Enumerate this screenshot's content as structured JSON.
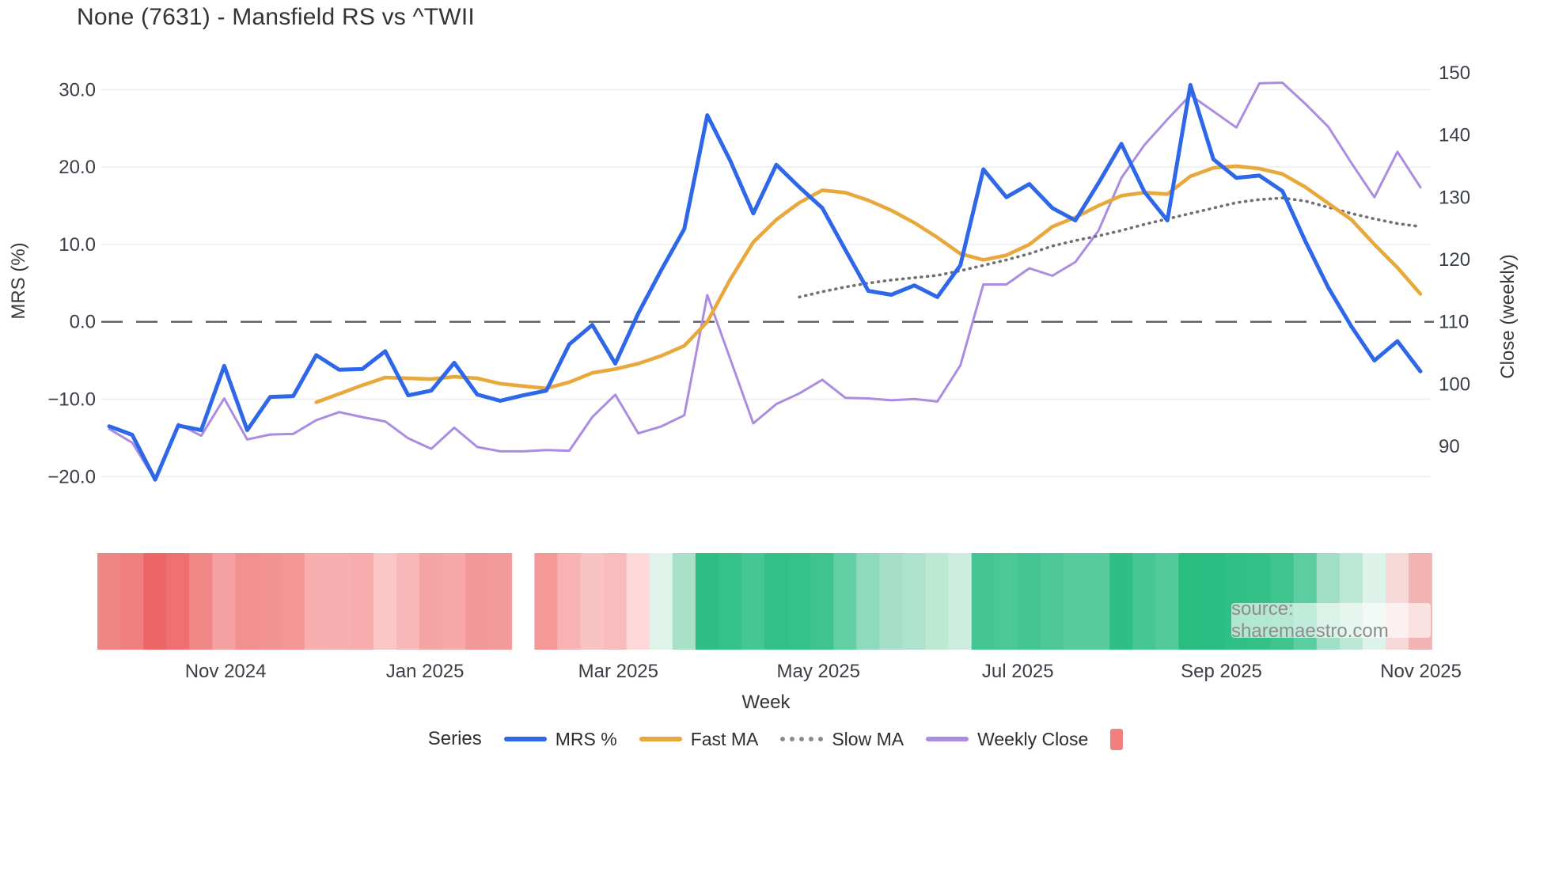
{
  "page": {
    "title": "None (7631) - Mansfield RS vs ^TWII"
  },
  "axes": {
    "left_title": "MRS (%)",
    "right_title": "Close (weekly)",
    "x_title": "Week"
  },
  "legend": {
    "title": "Series",
    "items": [
      {
        "label": "MRS %",
        "swatch": "line",
        "color": "#2e68e8"
      },
      {
        "label": "Fast MA",
        "swatch": "line",
        "color": "#e9a83c"
      },
      {
        "label": "Slow MA",
        "swatch": "dotted",
        "color": "#8a8a8a"
      },
      {
        "label": "Weekly Close",
        "swatch": "line",
        "color": "#ab8ce0"
      },
      {
        "label": "",
        "swatch": "square",
        "color": "#f28080"
      }
    ]
  },
  "source": {
    "text": "source: sharemaestro.com"
  },
  "chart_data": {
    "type": "line",
    "title": "None (7631) - Mansfield RS vs ^TWII",
    "xlabel": "Week",
    "ylabel_left": "MRS (%)",
    "ylabel_right": "Close (weekly)",
    "grid": "horizontal-left-ticks-only",
    "legend_position": "bottom-center",
    "n_points": 58,
    "x_unit": "weekly, ~Sep 2024 through early Nov 2025",
    "x_ticks": [
      {
        "label": "Nov 2024",
        "week": 5.06
      },
      {
        "label": "Jan 2025",
        "week": 13.73
      },
      {
        "label": "Mar 2025",
        "week": 22.13
      },
      {
        "label": "May 2025",
        "week": 30.83
      },
      {
        "label": "Jul 2025",
        "week": 39.5
      },
      {
        "label": "Sep 2025",
        "week": 48.35
      },
      {
        "label": "Nov 2025",
        "week": 57.02
      }
    ],
    "y_left": {
      "ticks": [
        {
          "label": "30.0",
          "value": 30
        },
        {
          "label": "20.0",
          "value": 20
        },
        {
          "label": "10.0",
          "value": 10
        },
        {
          "label": "0.0",
          "value": 0
        },
        {
          "label": "−10.0",
          "value": -10
        },
        {
          "label": "−20.0",
          "value": -20
        }
      ],
      "range": [
        -24,
        35
      ]
    },
    "y_right": {
      "ticks": [
        {
          "label": "150",
          "value": 150
        },
        {
          "label": "140",
          "value": 140
        },
        {
          "label": "130",
          "value": 130
        },
        {
          "label": "120",
          "value": 120
        },
        {
          "label": "110",
          "value": 110
        },
        {
          "label": "100",
          "value": 100
        },
        {
          "label": "90",
          "value": 90
        }
      ],
      "range": [
        80.5,
        153.5
      ]
    },
    "zero_line": {
      "axis": "left",
      "value": 0,
      "style": "dashed",
      "color": "#565c68"
    },
    "series": [
      {
        "name": "Weekly Close",
        "axis": "right",
        "color": "#ab8ce0",
        "width": 3,
        "style": "solid",
        "values": [
          92.8,
          90.6,
          84.6,
          93.6,
          91.7,
          97.7,
          91.1,
          91.9,
          92.0,
          94.2,
          95.5,
          94.7,
          94.0,
          91.3,
          89.6,
          93.0,
          89.9,
          89.2,
          89.2,
          89.4,
          89.3,
          94.7,
          98.3,
          92.1,
          93.2,
          95.0,
          114.3,
          104.0,
          93.7,
          96.8,
          98.5,
          100.7,
          97.8,
          97.7,
          97.4,
          97.6,
          97.2,
          103.0,
          116.0,
          116.0,
          118.6,
          117.4,
          119.6,
          124.6,
          133.1,
          138.4,
          142.5,
          146.4,
          143.8,
          141.2,
          148.3,
          148.4,
          145.0,
          141.3,
          135.5,
          130.0,
          137.3,
          131.6
        ]
      },
      {
        "name": "Slow MA",
        "axis": "left",
        "color": "#707070",
        "width": 3.6,
        "style": "dotted",
        "values": [
          null,
          null,
          null,
          null,
          null,
          null,
          null,
          null,
          null,
          null,
          null,
          null,
          null,
          null,
          null,
          null,
          null,
          null,
          null,
          null,
          null,
          null,
          null,
          null,
          null,
          null,
          null,
          null,
          null,
          null,
          3.2,
          3.9,
          4.5,
          5.0,
          5.4,
          5.7,
          6.0,
          6.6,
          7.3,
          8.0,
          8.8,
          9.8,
          10.5,
          11.1,
          11.8,
          12.6,
          13.3,
          14.0,
          14.7,
          15.4,
          15.8,
          16.0,
          15.6,
          14.8,
          14.0,
          13.3,
          12.7,
          12.3
        ]
      },
      {
        "name": "Fast MA",
        "axis": "left",
        "color": "#e9a83c",
        "width": 4.6,
        "style": "solid",
        "values": [
          null,
          null,
          null,
          null,
          null,
          null,
          null,
          null,
          null,
          -10.4,
          -9.3,
          -8.2,
          -7.2,
          -7.3,
          -7.4,
          -7.1,
          -7.3,
          -8.0,
          -8.3,
          -8.6,
          -7.8,
          -6.6,
          -6.1,
          -5.4,
          -4.4,
          -3.1,
          0.0,
          5.5,
          10.3,
          13.2,
          15.4,
          17.0,
          16.7,
          15.7,
          14.4,
          12.8,
          10.9,
          8.8,
          8.0,
          8.6,
          10.0,
          12.3,
          13.5,
          15.0,
          16.3,
          16.7,
          16.5,
          18.8,
          19.9,
          20.1,
          19.8,
          19.1,
          17.4,
          15.3,
          13.2,
          10.0,
          7.0,
          3.6
        ]
      },
      {
        "name": "MRS %",
        "axis": "left",
        "color": "#2e68e8",
        "width": 5,
        "style": "solid",
        "values": [
          -13.5,
          -14.6,
          -20.4,
          -13.4,
          -14.0,
          -5.7,
          -14.0,
          -9.7,
          -9.6,
          -4.3,
          -6.2,
          -6.1,
          -3.8,
          -9.5,
          -8.9,
          -5.3,
          -9.4,
          -10.2,
          -9.5,
          -8.9,
          -2.9,
          -0.4,
          -5.4,
          1.1,
          6.7,
          12.0,
          26.7,
          20.8,
          14.0,
          20.3,
          17.4,
          14.7,
          9.3,
          4.0,
          3.5,
          4.7,
          3.2,
          7.3,
          19.7,
          16.1,
          17.8,
          14.7,
          13.1,
          17.9,
          23.0,
          16.8,
          13.1,
          30.6,
          21.0,
          18.6,
          18.9,
          16.9,
          10.4,
          4.4,
          -0.6,
          -5.0,
          -2.5,
          -6.4
        ]
      }
    ],
    "heatmap": {
      "description": "weekly strip below chart, red=weak green=strong, one cell per week, gap at week 18",
      "colors": [
        "#f08585",
        "#f07f7f",
        "#ed6666",
        "#ee7070",
        "#f08787",
        "#f5a0a0",
        "#f29090",
        "#f29393",
        "#f39696",
        "#f7aeae",
        "#f7b0b0",
        "#f7adad",
        "#fbc6c6",
        "#f8b8b8",
        "#f5a4a4",
        "#f6a8a8",
        "#f39898",
        "#f39b9b",
        null,
        "#f59898",
        "#f8b2b2",
        "#fac3c3",
        "#f9bcbc",
        "#fdd8d8",
        "#dff3ea",
        "#a8e0c8",
        "#2ebe85",
        "#36c08a",
        "#46c694",
        "#33bf88",
        "#36c08a",
        "#3fc38f",
        "#63cfa4",
        "#8fd9bd",
        "#a5dfc8",
        "#ade3cd",
        "#bce8d4",
        "#cdeede",
        "#44c593",
        "#4cc897",
        "#43c492",
        "#4ec898",
        "#57cb9d",
        "#57cb9d",
        "#2fbf86",
        "#46c694",
        "#52ca9b",
        "#29bd82",
        "#2abd83",
        "#30bf86",
        "#35c08a",
        "#3fc38f",
        "#5ccda0",
        "#a0dec5",
        "#bce8d5",
        "#ddf2e9",
        "#f6d8d8",
        "#f2b3b3"
      ]
    }
  }
}
